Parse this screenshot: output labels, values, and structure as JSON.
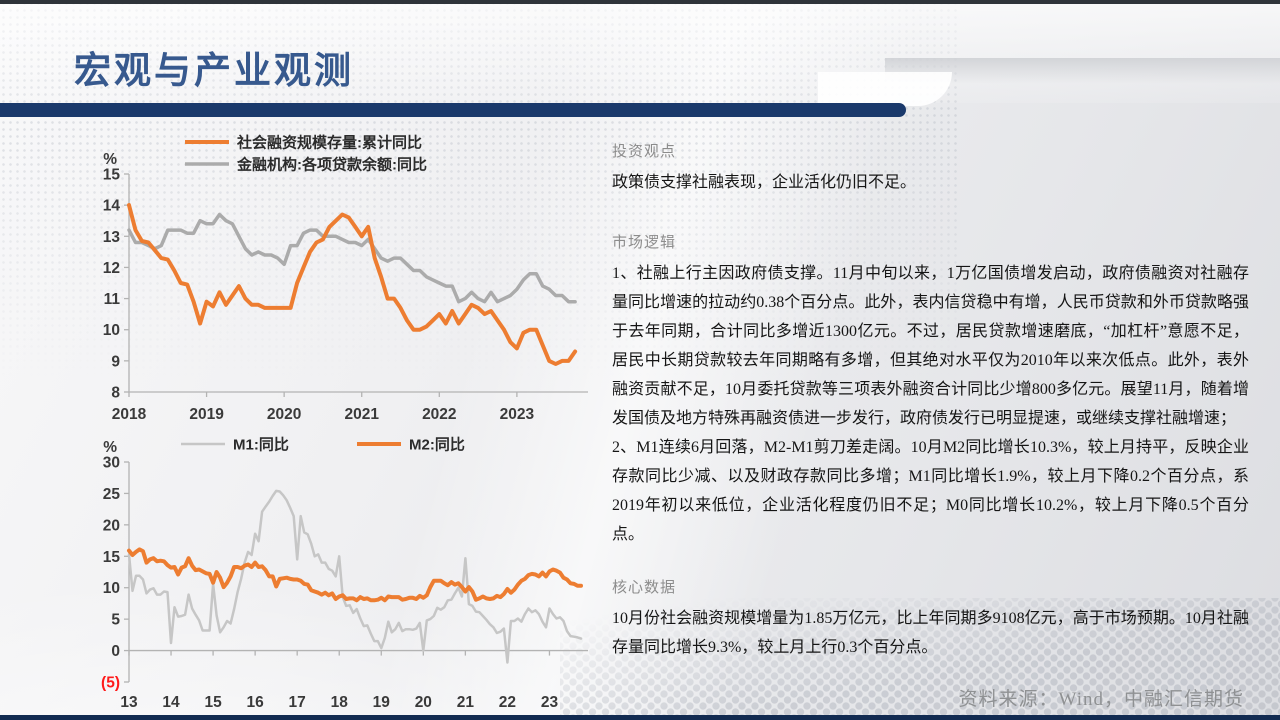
{
  "slide": {
    "title": "宏观与产业观测",
    "source_note": "资料来源：Wind，中融汇信期货"
  },
  "sections": {
    "viewpoint": {
      "heading": "投资观点",
      "body": "政策债支撑社融表现，企业活化仍旧不足。"
    },
    "logic": {
      "heading": "市场逻辑",
      "items": [
        "1、社融上行主因政府债支撑。11月中旬以来，1万亿国债增发启动，政府债融资对社融存量同比增速的拉动约0.38个百分点。此外，表内信贷稳中有增，人民币贷款和外币贷款略强于去年同期，合计同比多增近1300亿元。不过，居民贷款增速磨底，“加杠杆”意愿不足，居民中长期贷款较去年同期略有多增，但其绝对水平仅为2010年以来次低点。此外，表外融资贡献不足，10月委托贷款等三项表外融资合计同比少增800多亿元。展望11月，随着增发国债及地方特殊再融资债进一步发行，政府债发行已明显提速，或继续支撑社融增速；",
        "2、M1连续6月回落，M2-M1剪刀差走阔。10月M2同比增长10.3%，较上月持平，反映企业存款同比少减、以及财政存款同比多增；M1同比增长1.9%，较上月下降0.2个百分点，系2019年初以来低位，企业活化程度仍旧不足；M0同比增长10.2%，较上月下降0.5个百分点。"
      ]
    },
    "core": {
      "heading": "核心数据",
      "body": "10月份社会融资规模增量为1.85万亿元，比上年同期多9108亿元，高于市场预期。10月社融存量同比增长9.3%，较上月上行0.3个百分点。"
    }
  },
  "chart_data": [
    {
      "type": "line",
      "title": "",
      "x_unit": "month",
      "x_start": "2018-01",
      "x_domain_months": 72,
      "xticks": [
        {
          "i": 0,
          "label": "2018"
        },
        {
          "i": 12,
          "label": "2019"
        },
        {
          "i": 24,
          "label": "2020"
        },
        {
          "i": 36,
          "label": "2021"
        },
        {
          "i": 48,
          "label": "2022"
        },
        {
          "i": 60,
          "label": "2023"
        }
      ],
      "ylabel": "%",
      "ylim": [
        8,
        15
      ],
      "x_axis_at": 8,
      "grid": false,
      "legend_position": "top-rows",
      "draw_order": [
        1,
        0
      ],
      "yticks": [
        {
          "v": 15,
          "label": "15"
        },
        {
          "v": 14,
          "label": "14"
        },
        {
          "v": 13,
          "label": "13"
        },
        {
          "v": 12,
          "label": "12"
        },
        {
          "v": 11,
          "label": "11"
        },
        {
          "v": 10,
          "label": "10"
        },
        {
          "v": 9,
          "label": "9"
        },
        {
          "v": 8,
          "label": "8"
        }
      ],
      "series": [
        {
          "name": "社会融资规模存量:累计同比",
          "color": "#ED7D31",
          "line_width": 4,
          "values": [
            14.0,
            13.2,
            12.85,
            12.8,
            12.55,
            12.3,
            12.25,
            11.9,
            11.5,
            11.45,
            10.9,
            10.2,
            10.9,
            10.75,
            11.2,
            10.8,
            11.1,
            11.4,
            11.0,
            10.8,
            10.8,
            10.7,
            10.7,
            10.7,
            10.7,
            10.7,
            11.5,
            12.0,
            12.5,
            12.8,
            12.9,
            13.3,
            13.5,
            13.7,
            13.6,
            13.3,
            13.0,
            13.3,
            12.3,
            11.7,
            11.0,
            11.0,
            10.7,
            10.3,
            10.0,
            10.0,
            10.1,
            10.3,
            10.5,
            10.2,
            10.6,
            10.2,
            10.5,
            10.8,
            10.7,
            10.5,
            10.6,
            10.3,
            10.0,
            9.6,
            9.4,
            9.9,
            10.0,
            10.0,
            9.5,
            9.0,
            8.9,
            9.0,
            9.0,
            9.3
          ]
        },
        {
          "name": "金融机构:各项贷款余额:同比",
          "color": "#ABABAB",
          "line_width": 3.5,
          "values": [
            13.2,
            12.8,
            12.8,
            12.7,
            12.6,
            12.7,
            13.2,
            13.2,
            13.2,
            13.1,
            13.1,
            13.5,
            13.4,
            13.4,
            13.7,
            13.5,
            13.4,
            13.0,
            12.6,
            12.4,
            12.5,
            12.4,
            12.4,
            12.3,
            12.1,
            12.7,
            12.7,
            13.1,
            13.2,
            13.2,
            13.0,
            13.0,
            13.0,
            12.9,
            12.8,
            12.8,
            12.7,
            12.9,
            12.6,
            12.3,
            12.2,
            12.3,
            12.3,
            12.1,
            11.9,
            11.9,
            11.7,
            11.6,
            11.5,
            11.4,
            11.4,
            10.9,
            11.0,
            11.2,
            11.0,
            10.9,
            11.2,
            10.9,
            11.0,
            11.1,
            11.3,
            11.6,
            11.8,
            11.8,
            11.4,
            11.3,
            11.1,
            11.1,
            10.9,
            10.9
          ]
        }
      ]
    },
    {
      "type": "line",
      "title": "",
      "x_unit": "month",
      "x_start": "2013-01",
      "x_domain_months": 132,
      "xticks": [
        {
          "i": 0,
          "label": "13"
        },
        {
          "i": 12,
          "label": "14"
        },
        {
          "i": 24,
          "label": "15"
        },
        {
          "i": 36,
          "label": "16"
        },
        {
          "i": 48,
          "label": "17"
        },
        {
          "i": 60,
          "label": "18"
        },
        {
          "i": 72,
          "label": "19"
        },
        {
          "i": 84,
          "label": "20"
        },
        {
          "i": 96,
          "label": "21"
        },
        {
          "i": 108,
          "label": "22"
        },
        {
          "i": 120,
          "label": "23"
        }
      ],
      "ylabel": "%",
      "ylim": [
        -5,
        30
      ],
      "x_axis_at": 0,
      "grid": false,
      "legend_position": "top-row",
      "draw_order": [
        0,
        1
      ],
      "yticks": [
        {
          "v": 30,
          "label": "30"
        },
        {
          "v": 25,
          "label": "25"
        },
        {
          "v": 20,
          "label": "20"
        },
        {
          "v": 15,
          "label": "15"
        },
        {
          "v": 10,
          "label": "10"
        },
        {
          "v": 5,
          "label": "5"
        },
        {
          "v": 0,
          "label": "0"
        },
        {
          "v": -5,
          "label": "(5)",
          "color": "#FF1A1A"
        }
      ],
      "series": [
        {
          "name": "M1:同比",
          "color": "#C6C6C6",
          "line_width": 2.5,
          "values": [
            15.3,
            9.5,
            11.9,
            11.9,
            11.3,
            9.1,
            9.7,
            9.9,
            8.9,
            8.9,
            9.4,
            9.3,
            1.2,
            6.9,
            5.4,
            5.5,
            5.7,
            8.9,
            6.7,
            5.7,
            4.8,
            3.2,
            3.2,
            3.2,
            10.6,
            5.6,
            2.9,
            3.7,
            4.7,
            4.3,
            6.6,
            9.3,
            11.4,
            14.0,
            15.7,
            15.2,
            18.6,
            17.4,
            22.1,
            22.9,
            23.7,
            24.6,
            25.4,
            25.3,
            24.7,
            23.9,
            22.7,
            21.4,
            14.5,
            21.4,
            18.8,
            18.5,
            17.0,
            15.0,
            15.3,
            14.0,
            14.0,
            13.0,
            12.7,
            11.8,
            15.0,
            8.5,
            7.1,
            7.2,
            6.0,
            6.6,
            5.1,
            3.9,
            4.0,
            2.7,
            1.5,
            1.5,
            0.4,
            2.0,
            4.6,
            2.9,
            3.4,
            4.4,
            3.1,
            3.4,
            3.4,
            3.3,
            3.5,
            4.4,
            0.0,
            4.8,
            5.0,
            5.5,
            6.8,
            6.5,
            6.9,
            8.0,
            8.1,
            9.1,
            10.0,
            8.6,
            14.7,
            7.4,
            7.1,
            6.2,
            6.1,
            5.5,
            4.9,
            4.2,
            3.7,
            2.8,
            3.0,
            3.5,
            -1.9,
            4.7,
            4.7,
            5.1,
            4.6,
            5.8,
            6.7,
            6.1,
            6.4,
            5.8,
            4.6,
            3.7,
            6.7,
            5.8,
            5.1,
            5.3,
            4.7,
            3.1,
            2.3,
            2.2,
            2.1,
            1.9
          ]
        },
        {
          "name": "M2:同比",
          "color": "#ED7D31",
          "line_width": 4,
          "values": [
            15.9,
            15.2,
            15.7,
            16.1,
            15.8,
            14.0,
            14.5,
            14.7,
            14.2,
            14.3,
            14.2,
            13.6,
            13.2,
            13.3,
            12.1,
            13.2,
            13.4,
            14.7,
            13.5,
            12.8,
            12.9,
            12.6,
            12.3,
            12.2,
            10.8,
            12.5,
            11.6,
            10.1,
            10.8,
            11.8,
            13.3,
            13.3,
            13.1,
            13.5,
            13.7,
            13.3,
            14.0,
            13.3,
            13.4,
            12.8,
            11.8,
            11.8,
            10.2,
            11.4,
            11.5,
            11.6,
            11.4,
            11.3,
            11.3,
            11.1,
            10.6,
            10.5,
            9.6,
            9.4,
            9.2,
            8.9,
            9.2,
            8.8,
            9.1,
            8.2,
            8.6,
            8.8,
            8.2,
            8.3,
            8.3,
            8.0,
            8.5,
            8.2,
            8.3,
            8.0,
            8.0,
            8.1,
            8.4,
            8.0,
            8.6,
            8.5,
            8.5,
            8.5,
            8.1,
            8.2,
            8.4,
            8.4,
            8.2,
            8.7,
            8.4,
            8.8,
            10.1,
            11.1,
            11.1,
            11.1,
            10.7,
            10.4,
            10.9,
            10.5,
            10.7,
            10.1,
            9.4,
            10.1,
            9.4,
            8.1,
            8.3,
            8.6,
            8.3,
            8.2,
            8.3,
            8.7,
            8.5,
            9.0,
            9.8,
            9.2,
            9.7,
            10.5,
            11.1,
            11.4,
            12.0,
            12.2,
            12.1,
            11.8,
            12.4,
            11.8,
            12.6,
            12.9,
            12.7,
            12.4,
            11.6,
            11.3,
            10.7,
            10.6,
            10.3,
            10.3
          ]
        }
      ]
    }
  ]
}
